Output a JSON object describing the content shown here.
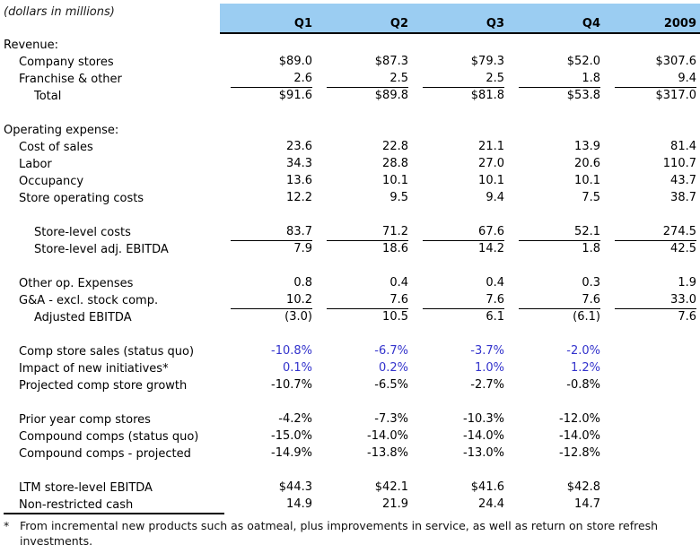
{
  "subtitle": "(dollars in millions)",
  "columns": [
    "Q1",
    "Q2",
    "Q3",
    "Q4",
    "2009"
  ],
  "colors": {
    "header_bg": "#9bcdf2",
    "highlight_text": "#3333cc"
  },
  "rows": [
    {
      "label": "Revenue:",
      "indent": 0,
      "values": [
        "",
        "",
        "",
        "",
        ""
      ]
    },
    {
      "label": "Company stores",
      "indent": 1,
      "values": [
        "$89.0",
        "$87.3",
        "$79.3",
        "$52.0",
        "$307.6"
      ]
    },
    {
      "label": "Franchise & other",
      "indent": 1,
      "underline": true,
      "values": [
        "2.6",
        "2.5",
        "2.5",
        "1.8",
        "9.4"
      ]
    },
    {
      "label": "Total",
      "indent": 2,
      "values": [
        "$91.6",
        "$89.8",
        "$81.8",
        "$53.8",
        "$317.0"
      ]
    },
    {
      "spacer": true
    },
    {
      "label": "Operating expense:",
      "indent": 0,
      "values": [
        "",
        "",
        "",
        "",
        ""
      ]
    },
    {
      "label": "Cost of sales",
      "indent": 1,
      "values": [
        "23.6",
        "22.8",
        "21.1",
        "13.9",
        "81.4"
      ]
    },
    {
      "label": "Labor",
      "indent": 1,
      "values": [
        "34.3",
        "28.8",
        "27.0",
        "20.6",
        "110.7"
      ]
    },
    {
      "label": "Occupancy",
      "indent": 1,
      "values": [
        "13.6",
        "10.1",
        "10.1",
        "10.1",
        "43.7"
      ]
    },
    {
      "label": "Store operating costs",
      "indent": 1,
      "values": [
        "12.2",
        "9.5",
        "9.4",
        "7.5",
        "38.7"
      ]
    },
    {
      "spacer": true
    },
    {
      "label": "Store-level costs",
      "indent": 2,
      "underline": true,
      "values": [
        "83.7",
        "71.2",
        "67.6",
        "52.1",
        "274.5"
      ]
    },
    {
      "label": "Store-level adj. EBITDA",
      "indent": 2,
      "values": [
        "7.9",
        "18.6",
        "14.2",
        "1.8",
        "42.5"
      ]
    },
    {
      "spacer": true
    },
    {
      "label": "Other op. Expenses",
      "indent": 1,
      "values": [
        "0.8",
        "0.4",
        "0.4",
        "0.3",
        "1.9"
      ]
    },
    {
      "label": "G&A - excl. stock comp.",
      "indent": 1,
      "underline": true,
      "values": [
        "10.2",
        "7.6",
        "7.6",
        "7.6",
        "33.0"
      ]
    },
    {
      "label": "Adjusted EBITDA",
      "indent": 2,
      "values": [
        "(3.0)",
        "10.5",
        "6.1",
        "(6.1)",
        "7.6"
      ]
    },
    {
      "spacer": true
    },
    {
      "label": "Comp store sales (status quo)",
      "indent": 1,
      "highlight": true,
      "values": [
        "-10.8%",
        "-6.7%",
        "-3.7%",
        "-2.0%",
        ""
      ]
    },
    {
      "label": "Impact of new initiatives*",
      "indent": 1,
      "highlight": true,
      "values": [
        "0.1%",
        "0.2%",
        "1.0%",
        "1.2%",
        ""
      ]
    },
    {
      "label": "Projected comp store growth",
      "indent": 1,
      "values": [
        "-10.7%",
        "-6.5%",
        "-2.7%",
        "-0.8%",
        ""
      ]
    },
    {
      "spacer": true
    },
    {
      "label": "Prior year comp stores",
      "indent": 1,
      "values": [
        "-4.2%",
        "-7.3%",
        "-10.3%",
        "-12.0%",
        ""
      ]
    },
    {
      "label": "Compound comps (status quo)",
      "indent": 1,
      "values": [
        "-15.0%",
        "-14.0%",
        "-14.0%",
        "-14.0%",
        ""
      ]
    },
    {
      "label": "Compound comps - projected",
      "indent": 1,
      "values": [
        "-14.9%",
        "-13.8%",
        "-13.0%",
        "-12.8%",
        ""
      ]
    },
    {
      "spacer": true
    },
    {
      "label": "LTM store-level EBITDA",
      "indent": 1,
      "values": [
        "$44.3",
        "$42.1",
        "$41.6",
        "$42.8",
        ""
      ]
    },
    {
      "label": "Non-restricted cash",
      "indent": 1,
      "values": [
        "14.9",
        "21.9",
        "24.4",
        "14.7",
        ""
      ]
    }
  ],
  "footnote": {
    "marker": "*",
    "text": "From incremental new products such as oatmeal, plus improvements in service, as well as return on store refresh investments."
  }
}
